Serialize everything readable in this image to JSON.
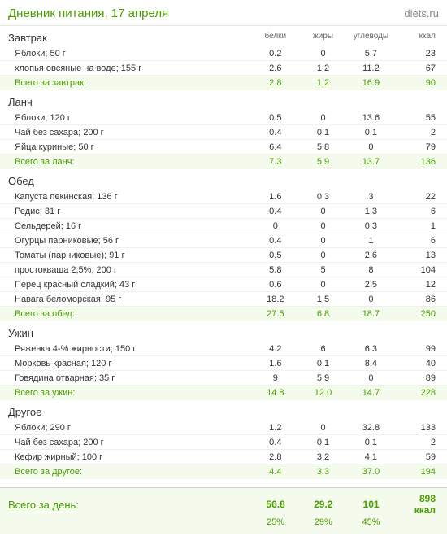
{
  "title": "Дневник питания, 17 апреля",
  "brand": "diets.ru",
  "columns": {
    "protein": "белки",
    "fat": "жиры",
    "carbs": "углеводы",
    "kcal": "ккал"
  },
  "colors": {
    "accent": "#4a9e00",
    "row_border": "#f0f0f0",
    "total_bg": "#f4faec",
    "header_border": "#e5e5e5",
    "day_border": "#d0d0d0",
    "muted": "#666666",
    "brand": "#888888",
    "text": "#333333"
  },
  "meals": [
    {
      "name": "Завтрак",
      "total_label": "Всего за завтрак:",
      "items": [
        {
          "name": "Яблоки; 50 г",
          "p": "0.2",
          "f": "0",
          "c": "5.7",
          "k": "23"
        },
        {
          "name": "хлопья овсяные на воде; 155 г",
          "p": "2.6",
          "f": "1.2",
          "c": "11.2",
          "k": "67"
        }
      ],
      "total": {
        "p": "2.8",
        "f": "1.2",
        "c": "16.9",
        "k": "90"
      }
    },
    {
      "name": "Ланч",
      "total_label": "Всего за ланч:",
      "items": [
        {
          "name": "Яблоки; 120 г",
          "p": "0.5",
          "f": "0",
          "c": "13.6",
          "k": "55"
        },
        {
          "name": "Чай без сахара; 200 г",
          "p": "0.4",
          "f": "0.1",
          "c": "0.1",
          "k": "2"
        },
        {
          "name": "Яйца куриные; 50 г",
          "p": "6.4",
          "f": "5.8",
          "c": "0",
          "k": "79"
        }
      ],
      "total": {
        "p": "7.3",
        "f": "5.9",
        "c": "13.7",
        "k": "136"
      }
    },
    {
      "name": "Обед",
      "total_label": "Всего за обед:",
      "items": [
        {
          "name": "Капуста пекинская; 136 г",
          "p": "1.6",
          "f": "0.3",
          "c": "3",
          "k": "22"
        },
        {
          "name": "Редис; 31 г",
          "p": "0.4",
          "f": "0",
          "c": "1.3",
          "k": "6"
        },
        {
          "name": "Сельдерей; 16 г",
          "p": "0",
          "f": "0",
          "c": "0.3",
          "k": "1"
        },
        {
          "name": "Огурцы парниковые; 56 г",
          "p": "0.4",
          "f": "0",
          "c": "1",
          "k": "6"
        },
        {
          "name": "Томаты (парниковые); 91 г",
          "p": "0.5",
          "f": "0",
          "c": "2.6",
          "k": "13"
        },
        {
          "name": "простокваша 2,5%; 200 г",
          "p": "5.8",
          "f": "5",
          "c": "8",
          "k": "104"
        },
        {
          "name": "Перец красный сладкий; 43 г",
          "p": "0.6",
          "f": "0",
          "c": "2.5",
          "k": "12"
        },
        {
          "name": "Навага беломорская; 95 г",
          "p": "18.2",
          "f": "1.5",
          "c": "0",
          "k": "86"
        }
      ],
      "total": {
        "p": "27.5",
        "f": "6.8",
        "c": "18.7",
        "k": "250"
      }
    },
    {
      "name": "Ужин",
      "total_label": "Всего за ужин:",
      "items": [
        {
          "name": "Ряженка 4-% жирности; 150 г",
          "p": "4.2",
          "f": "6",
          "c": "6.3",
          "k": "99"
        },
        {
          "name": "Морковь красная; 120 г",
          "p": "1.6",
          "f": "0.1",
          "c": "8.4",
          "k": "40"
        },
        {
          "name": "Говядина отварная; 35 г",
          "p": "9",
          "f": "5.9",
          "c": "0",
          "k": "89"
        }
      ],
      "total": {
        "p": "14.8",
        "f": "12.0",
        "c": "14.7",
        "k": "228"
      }
    },
    {
      "name": "Другое",
      "total_label": "Всего за другое:",
      "items": [
        {
          "name": "Яблоки; 290 г",
          "p": "1.2",
          "f": "0",
          "c": "32.8",
          "k": "133"
        },
        {
          "name": "Чай без сахара; 200 г",
          "p": "0.4",
          "f": "0.1",
          "c": "0.1",
          "k": "2"
        },
        {
          "name": "Кефир жирный; 100 г",
          "p": "2.8",
          "f": "3.2",
          "c": "4.1",
          "k": "59"
        }
      ],
      "total": {
        "p": "4.4",
        "f": "3.3",
        "c": "37.0",
        "k": "194"
      }
    }
  ],
  "day": {
    "label": "Всего за день:",
    "p": "56.8",
    "f": "29.2",
    "c": "101",
    "k": "898 ккал",
    "pct_p": "25%",
    "pct_f": "29%",
    "pct_c": "45%"
  }
}
